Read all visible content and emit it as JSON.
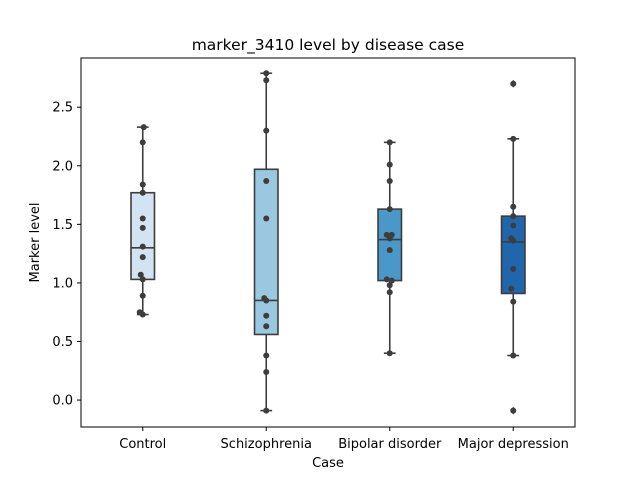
{
  "chart_data": {
    "type": "box",
    "title": "marker_3410 level by disease case",
    "xlabel": "Case",
    "ylabel": "Marker level",
    "categories": [
      "Control",
      "Schizophrenia",
      "Bipolar disorder",
      "Major depression"
    ],
    "ylim": [
      -0.23,
      2.92
    ],
    "yticks": [
      0.0,
      0.5,
      1.0,
      1.5,
      2.0,
      2.5
    ],
    "ytick_labels": [
      "0.0",
      "0.5",
      "1.0",
      "1.5",
      "2.0",
      "2.5"
    ],
    "grid": false,
    "box_colors": [
      "#d3e3f2",
      "#9ac8e0",
      "#4a98c9",
      "#2066ac"
    ],
    "line_color": "#3d3d3d",
    "point_color": "#3d3d3d",
    "boxes": [
      {
        "category": "Control",
        "whislo": 0.73,
        "q1": 1.03,
        "med": 1.3,
        "q3": 1.77,
        "whishi": 2.33,
        "fliers": []
      },
      {
        "category": "Schizophrenia",
        "whislo": -0.09,
        "q1": 0.56,
        "med": 0.85,
        "q3": 1.97,
        "whishi": 2.79,
        "fliers": []
      },
      {
        "category": "Bipolar disorder",
        "whislo": 0.4,
        "q1": 1.02,
        "med": 1.37,
        "q3": 1.63,
        "whishi": 2.2,
        "fliers": []
      },
      {
        "category": "Major depression",
        "whislo": 0.38,
        "q1": 0.91,
        "med": 1.35,
        "q3": 1.57,
        "whishi": 2.23,
        "fliers": [
          2.7,
          -0.09
        ]
      }
    ],
    "points": [
      [
        2.33,
        2.2,
        1.84,
        1.77,
        1.55,
        1.47,
        1.31,
        1.22,
        1.07,
        1.03,
        0.89,
        0.75,
        0.73
      ],
      [
        2.79,
        2.73,
        2.3,
        1.87,
        1.55,
        0.87,
        0.85,
        0.72,
        0.63,
        0.38,
        0.24,
        -0.09
      ],
      [
        2.2,
        2.01,
        1.87,
        1.63,
        1.41,
        1.41,
        1.38,
        1.28,
        1.03,
        1.02,
        0.98,
        0.92,
        0.4
      ],
      [
        2.7,
        2.23,
        1.65,
        1.57,
        1.49,
        1.38,
        1.36,
        1.12,
        0.95,
        0.84,
        0.38,
        -0.09
      ]
    ],
    "point_offsets": [
      [
        1,
        0,
        0,
        0,
        0,
        0,
        0,
        0,
        -2,
        0,
        0,
        -3,
        0
      ],
      [
        0,
        0,
        0,
        0,
        0,
        -2,
        0,
        0,
        0,
        0,
        0,
        0
      ],
      [
        0,
        0,
        0,
        0,
        -3,
        2,
        0,
        0,
        -3,
        2,
        0,
        0,
        0
      ],
      [
        0,
        0,
        0,
        0,
        0,
        -2,
        0,
        0,
        -2,
        0,
        0,
        0
      ]
    ]
  }
}
